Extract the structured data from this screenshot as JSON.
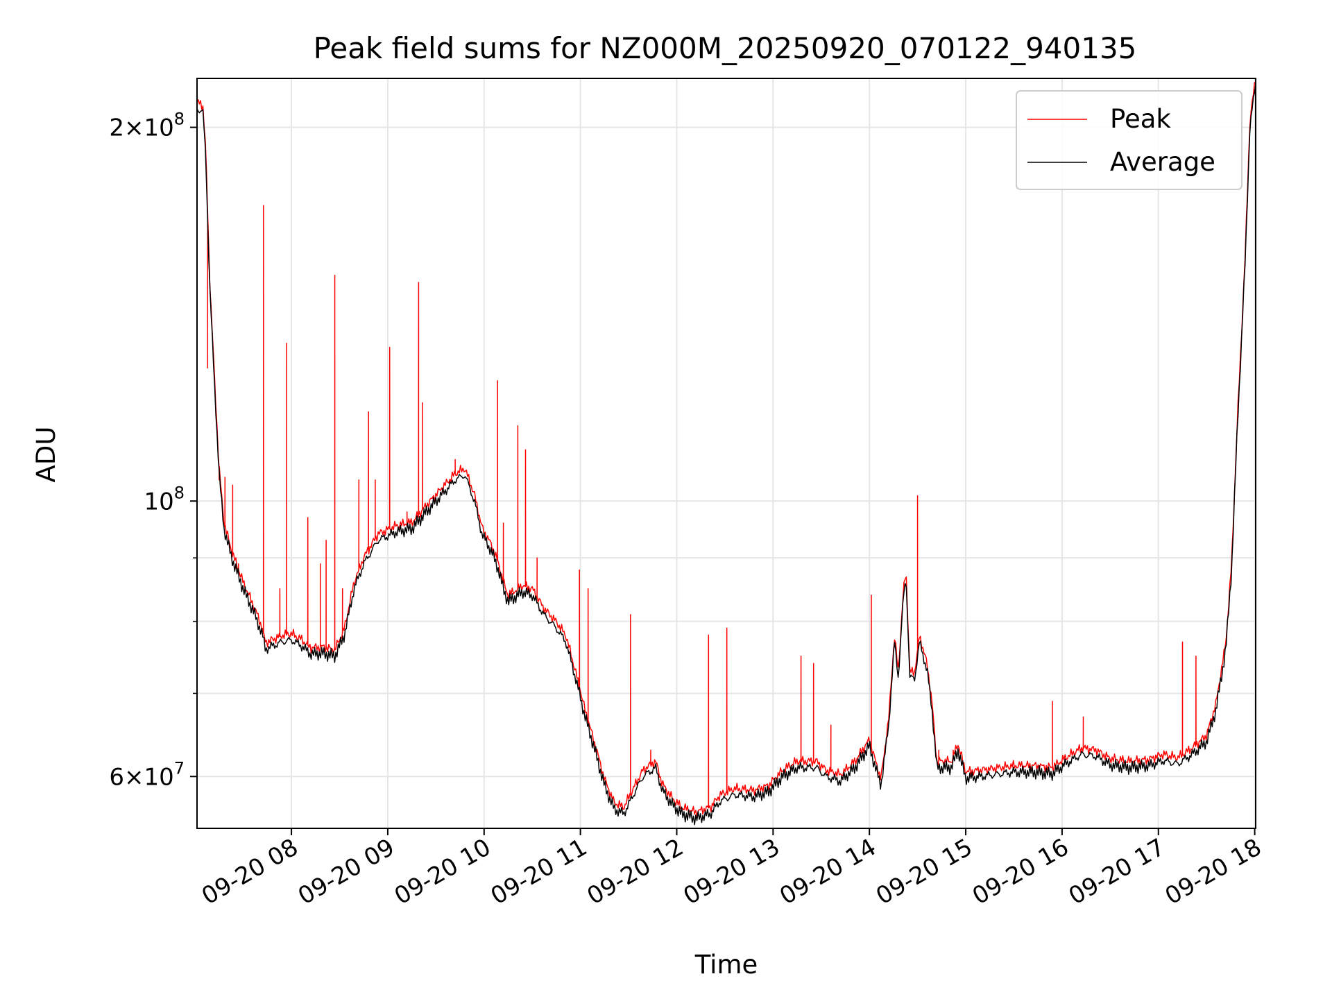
{
  "chart_data": {
    "type": "line",
    "title": "Peak field sums for NZ000M_20250920_070122_940135",
    "xlabel": "Time",
    "ylabel": "ADU",
    "yscale": "log",
    "grid": true,
    "legend_location": "top-right",
    "xlim_hours": [
      7.02,
      18.01
    ],
    "ylim": [
      54500000,
      219000000
    ],
    "x_ticks": [
      {
        "x": 8,
        "label": "09-20 08"
      },
      {
        "x": 9,
        "label": "09-20 09"
      },
      {
        "x": 10,
        "label": "09-20 10"
      },
      {
        "x": 11,
        "label": "09-20 11"
      },
      {
        "x": 12,
        "label": "09-20 12"
      },
      {
        "x": 13,
        "label": "09-20 13"
      },
      {
        "x": 14,
        "label": "09-20 14"
      },
      {
        "x": 15,
        "label": "09-20 15"
      },
      {
        "x": 16,
        "label": "09-20 16"
      },
      {
        "x": 17,
        "label": "09-20 17"
      },
      {
        "x": 18,
        "label": "09-20 18"
      }
    ],
    "y_ticks_major": [
      {
        "value": 60000000,
        "base": "6",
        "exponent": "7"
      },
      {
        "value": 100000000,
        "base": "",
        "exponent": "8"
      },
      {
        "value": 200000000,
        "base": "2",
        "exponent": "8"
      }
    ],
    "y_ticks_minor": [
      70000000,
      80000000,
      90000000
    ],
    "tick_times": "×",
    "tick_ten": "10",
    "series": [
      {
        "name": "Peak",
        "color": "#ff0000",
        "baseline_from": "Average",
        "offset_ratio": 1.012,
        "spikes": [
          {
            "x": 7.13,
            "y": 128000000
          },
          {
            "x": 7.25,
            "y": 104000000
          },
          {
            "x": 7.31,
            "y": 104500000
          },
          {
            "x": 7.39,
            "y": 103000000
          },
          {
            "x": 7.45,
            "y": 89000000
          },
          {
            "x": 7.71,
            "y": 173000000
          },
          {
            "x": 7.88,
            "y": 85000000
          },
          {
            "x": 7.95,
            "y": 134000000
          },
          {
            "x": 8.17,
            "y": 97000000
          },
          {
            "x": 8.3,
            "y": 89000000
          },
          {
            "x": 8.36,
            "y": 93000000
          },
          {
            "x": 8.45,
            "y": 152000000
          },
          {
            "x": 8.53,
            "y": 85000000
          },
          {
            "x": 8.7,
            "y": 104000000
          },
          {
            "x": 8.8,
            "y": 118000000
          },
          {
            "x": 8.87,
            "y": 104000000
          },
          {
            "x": 9.02,
            "y": 133000000
          },
          {
            "x": 9.2,
            "y": 98000000
          },
          {
            "x": 9.32,
            "y": 150000000
          },
          {
            "x": 9.36,
            "y": 120000000
          },
          {
            "x": 9.7,
            "y": 108000000
          },
          {
            "x": 10.14,
            "y": 125000000
          },
          {
            "x": 10.2,
            "y": 96000000
          },
          {
            "x": 10.35,
            "y": 115000000
          },
          {
            "x": 10.43,
            "y": 110000000
          },
          {
            "x": 10.55,
            "y": 90000000
          },
          {
            "x": 10.99,
            "y": 88000000
          },
          {
            "x": 11.08,
            "y": 85000000
          },
          {
            "x": 11.52,
            "y": 81000000
          },
          {
            "x": 11.73,
            "y": 63000000
          },
          {
            "x": 12.33,
            "y": 78000000
          },
          {
            "x": 12.52,
            "y": 79000000
          },
          {
            "x": 13.29,
            "y": 75000000
          },
          {
            "x": 13.42,
            "y": 74000000
          },
          {
            "x": 13.6,
            "y": 66000000
          },
          {
            "x": 14.02,
            "y": 84000000
          },
          {
            "x": 14.5,
            "y": 101000000
          },
          {
            "x": 14.72,
            "y": 63000000
          },
          {
            "x": 14.87,
            "y": 63000000
          },
          {
            "x": 15.9,
            "y": 69000000
          },
          {
            "x": 16.22,
            "y": 67000000
          },
          {
            "x": 17.25,
            "y": 77000000
          },
          {
            "x": 17.39,
            "y": 75000000
          }
        ]
      },
      {
        "name": "Average",
        "color": "#000000",
        "points": [
          [
            7.02,
            207000000
          ],
          [
            7.08,
            206000000
          ],
          [
            7.11,
            190000000
          ],
          [
            7.15,
            150000000
          ],
          [
            7.2,
            125000000
          ],
          [
            7.25,
            105000000
          ],
          [
            7.3,
            95000000
          ],
          [
            7.38,
            90000000
          ],
          [
            7.5,
            85000000
          ],
          [
            7.62,
            81000000
          ],
          [
            7.7,
            78000000
          ],
          [
            7.73,
            76000000
          ],
          [
            7.9,
            77000000
          ],
          [
            8.0,
            77300000
          ],
          [
            8.1,
            76500000
          ],
          [
            8.2,
            75300000
          ],
          [
            8.33,
            75400000
          ],
          [
            8.45,
            75000000
          ],
          [
            8.55,
            78000000
          ],
          [
            8.65,
            85000000
          ],
          [
            8.75,
            89000000
          ],
          [
            8.9,
            93000000
          ],
          [
            9.1,
            94500000
          ],
          [
            9.25,
            95000000
          ],
          [
            9.4,
            98000000
          ],
          [
            9.55,
            101000000
          ],
          [
            9.7,
            104000000
          ],
          [
            9.8,
            105000000
          ],
          [
            9.9,
            100000000
          ],
          [
            9.98,
            94000000
          ],
          [
            10.08,
            91000000
          ],
          [
            10.15,
            88000000
          ],
          [
            10.2,
            85000000
          ],
          [
            10.25,
            83000000
          ],
          [
            10.4,
            84500000
          ],
          [
            10.5,
            84000000
          ],
          [
            10.62,
            81000000
          ],
          [
            10.75,
            79000000
          ],
          [
            10.85,
            77000000
          ],
          [
            10.95,
            72000000
          ],
          [
            11.05,
            67000000
          ],
          [
            11.15,
            63000000
          ],
          [
            11.25,
            59000000
          ],
          [
            11.35,
            56500000
          ],
          [
            11.45,
            56000000
          ],
          [
            11.55,
            58000000
          ],
          [
            11.65,
            60000000
          ],
          [
            11.78,
            61000000
          ],
          [
            11.85,
            58500000
          ],
          [
            11.95,
            57000000
          ],
          [
            12.05,
            56000000
          ],
          [
            12.2,
            55500000
          ],
          [
            12.35,
            56000000
          ],
          [
            12.45,
            57300000
          ],
          [
            12.6,
            58000000
          ],
          [
            12.8,
            57800000
          ],
          [
            12.95,
            58300000
          ],
          [
            13.1,
            60000000
          ],
          [
            13.25,
            61000000
          ],
          [
            13.45,
            61000000
          ],
          [
            13.55,
            60000000
          ],
          [
            13.7,
            59500000
          ],
          [
            13.85,
            61000000
          ],
          [
            14.0,
            63500000
          ],
          [
            14.05,
            61500000
          ],
          [
            14.12,
            59000000
          ],
          [
            14.2,
            66000000
          ],
          [
            14.26,
            77000000
          ],
          [
            14.3,
            72000000
          ],
          [
            14.35,
            83000000
          ],
          [
            14.38,
            87000000
          ],
          [
            14.42,
            72000000
          ],
          [
            14.47,
            72000000
          ],
          [
            14.52,
            77000000
          ],
          [
            14.6,
            73000000
          ],
          [
            14.65,
            68000000
          ],
          [
            14.7,
            61000000
          ],
          [
            14.85,
            61000000
          ],
          [
            14.92,
            63000000
          ],
          [
            15.0,
            59800000
          ],
          [
            15.15,
            60000000
          ],
          [
            15.3,
            60200000
          ],
          [
            15.5,
            60500000
          ],
          [
            15.7,
            60500000
          ],
          [
            15.9,
            60300000
          ],
          [
            16.05,
            61500000
          ],
          [
            16.2,
            62500000
          ],
          [
            16.35,
            62300000
          ],
          [
            16.5,
            61300000
          ],
          [
            16.7,
            61000000
          ],
          [
            16.9,
            61200000
          ],
          [
            17.05,
            61800000
          ],
          [
            17.2,
            61400000
          ],
          [
            17.35,
            62500000
          ],
          [
            17.5,
            64000000
          ],
          [
            17.6,
            68000000
          ],
          [
            17.7,
            76000000
          ],
          [
            17.76,
            88000000
          ],
          [
            17.82,
            115000000
          ],
          [
            17.9,
            155000000
          ],
          [
            17.95,
            200000000
          ],
          [
            18.01,
            217000000
          ]
        ]
      }
    ]
  }
}
